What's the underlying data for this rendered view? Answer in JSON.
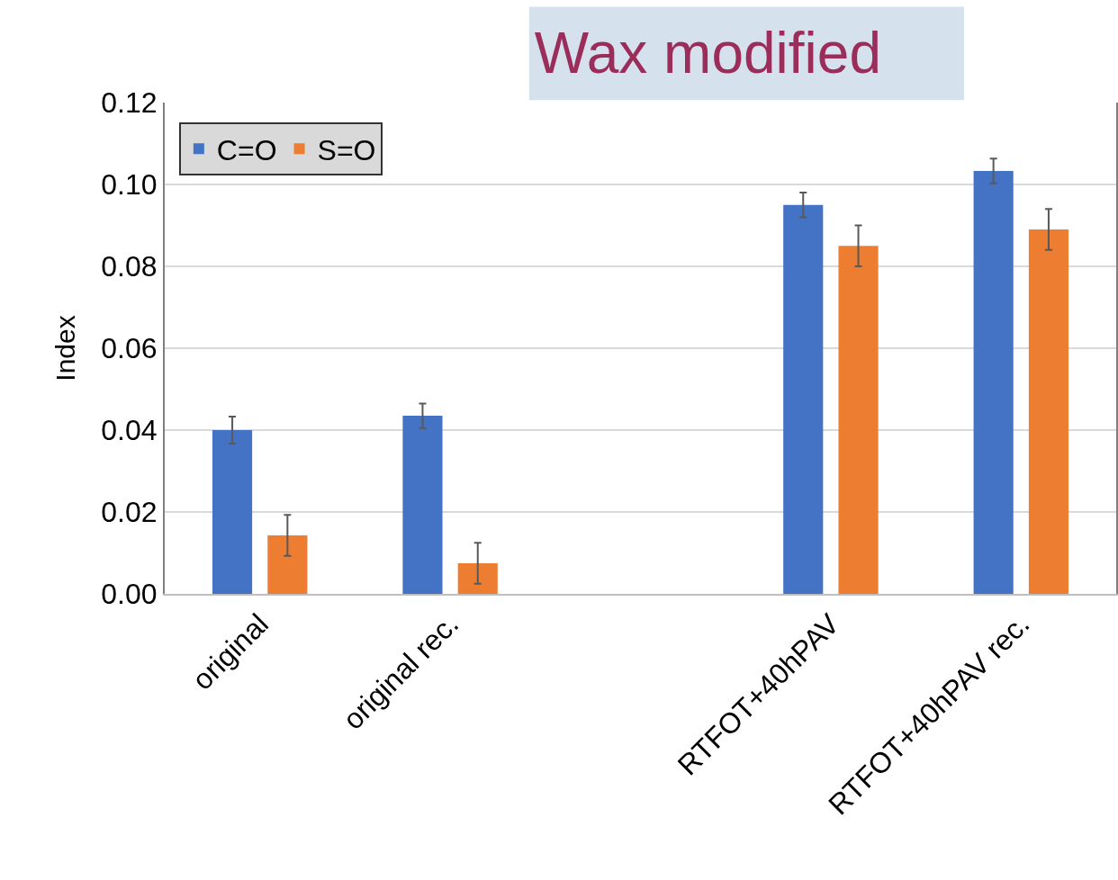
{
  "chart_data": {
    "type": "bar",
    "title": "Wax modified",
    "ylabel": "Index",
    "categories": [
      "original",
      "original rec.",
      null,
      "RTFOT+40hPAV",
      "RTFOT+40hPAV rec."
    ],
    "series": [
      {
        "name": "C=O",
        "color": "#4472c4",
        "values": [
          0.04,
          0.0435,
          null,
          0.095,
          0.1033
        ],
        "errors": [
          0.0033,
          0.003,
          null,
          0.003,
          0.003
        ]
      },
      {
        "name": "S=O",
        "color": "#ed7d31",
        "values": [
          0.0143,
          0.0075,
          null,
          0.085,
          0.089
        ],
        "errors": [
          0.005,
          0.005,
          null,
          0.005,
          0.005
        ]
      }
    ],
    "ylim": [
      0,
      0.12
    ],
    "yticks": [
      {
        "value": 0,
        "label": "0.00"
      },
      {
        "value": 0.02,
        "label": "0.02"
      },
      {
        "value": 0.04,
        "label": "0.04"
      },
      {
        "value": 0.06,
        "label": "0.06"
      },
      {
        "value": 0.08,
        "label": "0.08"
      },
      {
        "value": 0.1,
        "label": "0.10"
      },
      {
        "value": 0.12,
        "label": "0.12"
      }
    ],
    "grid": "y",
    "legend": "top left"
  }
}
